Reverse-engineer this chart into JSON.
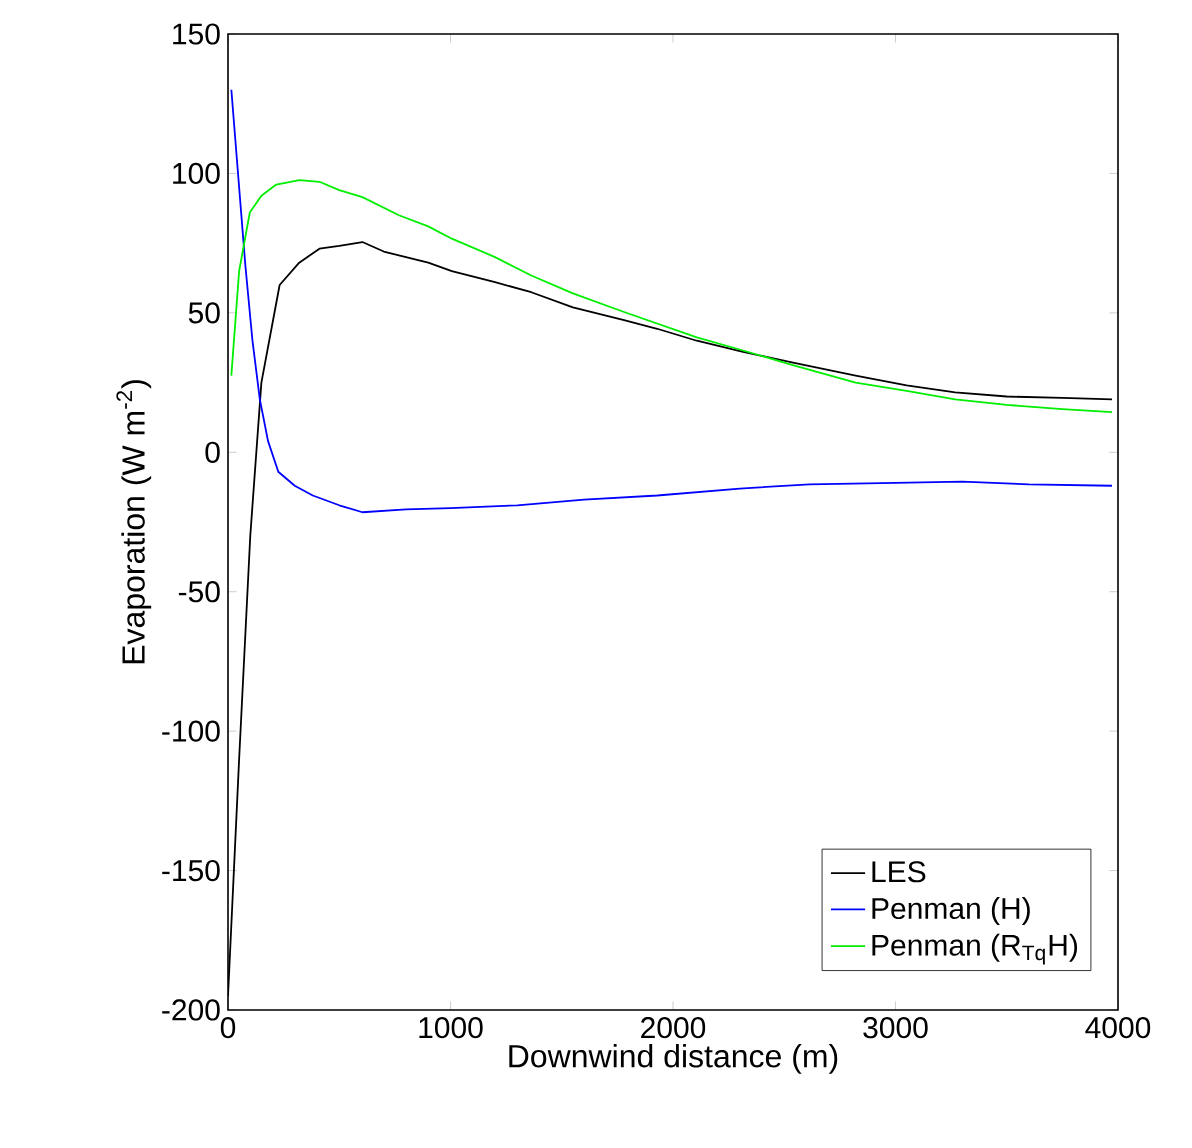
{
  "chart_data": {
    "type": "line",
    "xlabel": "Downwind distance (m)",
    "ylabel": "Evaporation (W m$^{-2}$)",
    "xlim": [
      0,
      4000
    ],
    "ylim": [
      -200,
      150
    ],
    "xticks": [
      0,
      1000,
      2000,
      3000,
      4000
    ],
    "yticks": [
      -200,
      -150,
      -100,
      -50,
      0,
      50,
      100,
      150
    ],
    "legend": "bottom right",
    "grid": false,
    "line_style": "solid",
    "marker": "none",
    "series": [
      {
        "name": "LES",
        "color": "#000000",
        "x": [
          0,
          50,
          100,
          150,
          232,
          320,
          411,
          500,
          604,
          700,
          768,
          900,
          1006,
          1200,
          1363,
          1550,
          1780,
          1929,
          2107,
          2315,
          2550,
          2821,
          3050,
          3268,
          3500,
          3750,
          3973
        ],
        "values": [
          -195,
          -110,
          -30,
          25,
          60,
          68,
          73,
          74,
          75.4,
          72,
          70.6,
          68,
          65,
          61,
          57.4,
          52,
          47.4,
          44.3,
          40,
          36,
          32,
          27.5,
          24,
          21.5,
          20,
          19.5,
          19
        ]
      },
      {
        "name": "Penman (H)",
        "color": "#0000ff",
        "x": [
          15,
          40,
          78,
          110,
          143,
          180,
          226,
          300,
          381,
          500,
          604,
          800,
          1000,
          1300,
          1600,
          1929,
          2300,
          2613,
          3000,
          3300,
          3600,
          3973
        ],
        "values": [
          130,
          105,
          67,
          40,
          19,
          4,
          -7,
          -12,
          -15.5,
          -19,
          -21.5,
          -20.5,
          -20,
          -19,
          -17,
          -15.5,
          -13,
          -11.5,
          -11,
          -10.5,
          -11.5,
          -12
        ]
      },
      {
        "name": "Penman (R$_{Tq}$H)",
        "color": "#00ee00",
        "x": [
          15,
          50,
          98,
          150,
          217,
          321,
          411,
          500,
          604,
          768,
          900,
          1006,
          1200,
          1363,
          1550,
          1780,
          2107,
          2315,
          2550,
          2821,
          3050,
          3268,
          3500,
          3750,
          3973
        ],
        "values": [
          27.5,
          65,
          86,
          92,
          96,
          97.6,
          97,
          94,
          91.5,
          85,
          81,
          76.6,
          70,
          63.4,
          57,
          50.3,
          41.2,
          36.5,
          31,
          25,
          22,
          19,
          17,
          15.5,
          14.4
        ]
      }
    ]
  }
}
